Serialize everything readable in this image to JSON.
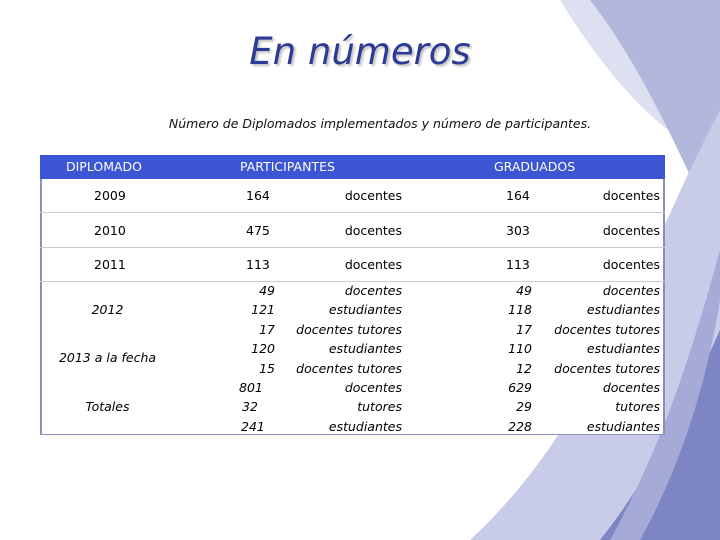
{
  "title": "En números",
  "subtitle": "Número de Diplomados implementados y número de participantes.",
  "table": {
    "headers": {
      "diplomado": "DIPLOMADO",
      "participantes": "PARTICIPANTES",
      "graduados": "GRADUADOS"
    },
    "rows": [
      {
        "year": "2009",
        "p_num": "164",
        "p_unit": "docentes",
        "g_num": "164",
        "g_unit": "docentes"
      },
      {
        "year": "2010",
        "p_num": "475",
        "p_unit": "docentes",
        "g_num": "303",
        "g_unit": "docentes"
      },
      {
        "year": "2011",
        "p_num": "113",
        "p_unit": "docentes",
        "g_num": "113",
        "g_unit": "docentes"
      }
    ],
    "group_labels": [
      "2012",
      "2013 a la fecha",
      "Totales"
    ],
    "group_p_nums": [
      "49",
      "121",
      "17",
      "120",
      "15",
      "801",
      "32",
      "241"
    ],
    "group_p_units": [
      "docentes",
      "estudiantes",
      "docentes tutores",
      "estudiantes",
      "docentes tutores",
      "docentes",
      "tutores",
      "estudiantes"
    ],
    "group_g_nums": [
      "49",
      "118",
      "17",
      "110",
      "12",
      "629",
      "29",
      "228"
    ],
    "group_g_units": [
      "docentes",
      "estudiantes",
      "docentes tutores",
      "estudiantes",
      "docentes tutores",
      "docentes",
      "tutores",
      "estudiantes"
    ]
  },
  "colors": {
    "header": "#3b55d4",
    "title": "#2d3a96",
    "decor_light": "#c4c8e6",
    "decor_dark": "#6f78b8"
  }
}
